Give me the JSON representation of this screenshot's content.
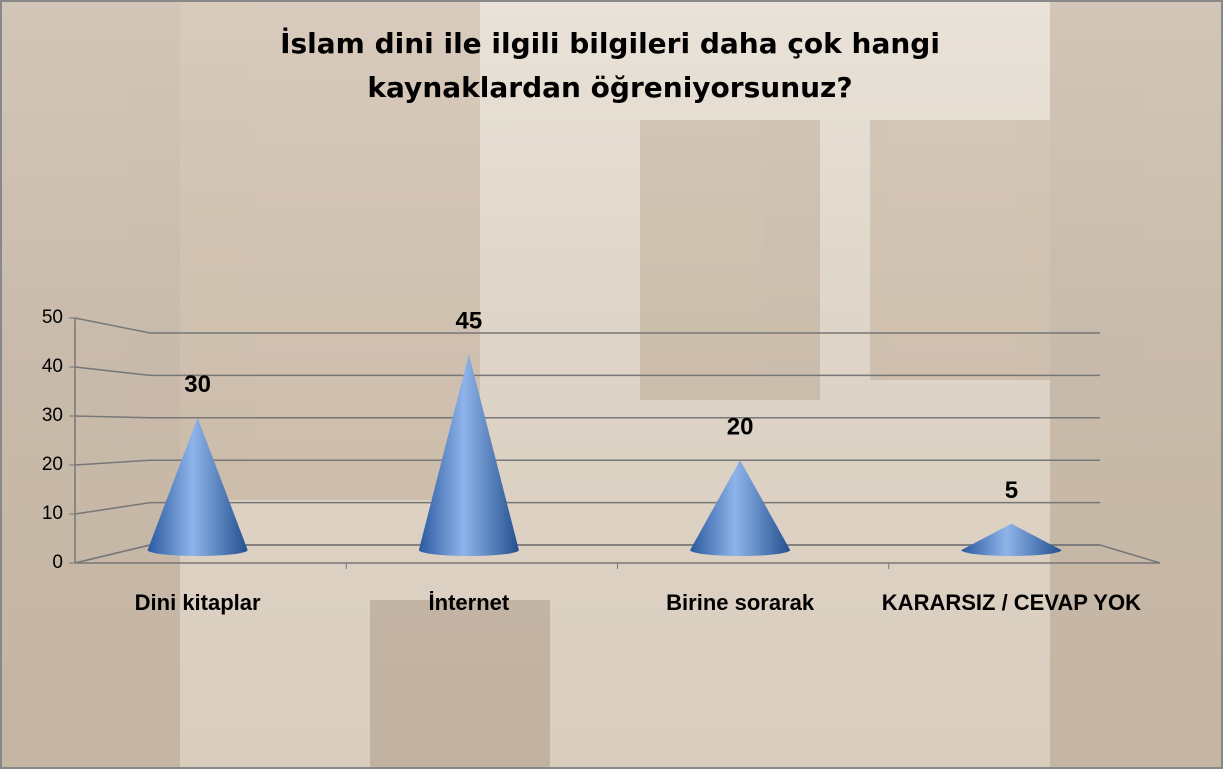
{
  "chart_data": {
    "type": "cone",
    "title": "İslam dini ile ilgili bilgileri daha çok hangi kaynaklardan öğreniyorsunuz?",
    "categories": [
      "Dini kitaplar",
      "İnternet",
      "Birine sorarak",
      "KARARSIZ / CEVAP YOK"
    ],
    "values": [
      30,
      45,
      20,
      5
    ],
    "color": "#3d6fb8",
    "ylim": [
      0,
      50
    ],
    "yticks": [
      0,
      10,
      20,
      30,
      40,
      50
    ],
    "grid": true
  }
}
